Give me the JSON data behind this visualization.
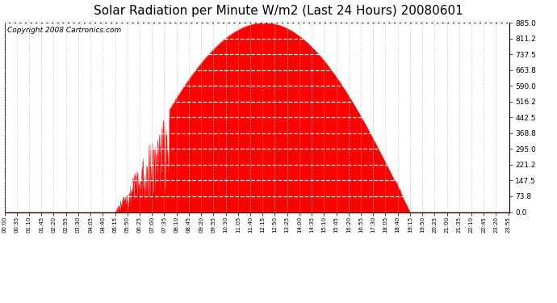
{
  "title": "Solar Radiation per Minute W/m2 (Last 24 Hours) 20080601",
  "copyright": "Copyright 2008 Cartronics.com",
  "fill_color": "#FF0000",
  "line_color": "#FF0000",
  "background_color": "#FFFFFF",
  "dashed_line_color": "#FF0000",
  "yticks": [
    0.0,
    73.8,
    147.5,
    221.2,
    295.0,
    368.8,
    442.5,
    516.2,
    590.0,
    663.8,
    737.5,
    811.2,
    885.0
  ],
  "ymax": 885.0,
  "ymin": 0.0,
  "title_fontsize": 11,
  "copyright_fontsize": 6.5,
  "sunrise_min": 315,
  "sunset_min": 1155,
  "peak_min": 740,
  "peak_val": 885.0,
  "tick_interval": 35
}
